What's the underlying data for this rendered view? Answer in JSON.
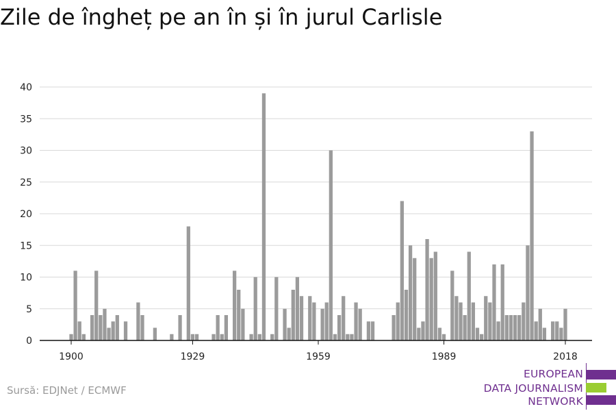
{
  "title": "Zile de îngheț pe an în și în jurul Carlisle",
  "source": "Sursă: EDJNet / ECMWF",
  "logo": {
    "lines": [
      "EUROPEAN",
      "DATA JOURNALISM",
      "NETWORK"
    ],
    "colors": {
      "purple": "#6f2f8f",
      "green": "#9acd32"
    }
  },
  "colors": {
    "bar": "#9b9b9b",
    "grid": "#d9d9d9",
    "axis": "#111111"
  },
  "chart_data": {
    "type": "bar",
    "x_start": 1900,
    "x_end": 2018,
    "ylim": [
      0,
      40
    ],
    "yticks": [
      0,
      5,
      10,
      15,
      20,
      25,
      30,
      35,
      40
    ],
    "xticks": [
      1900,
      1929,
      1959,
      1989,
      2018
    ],
    "grid": true,
    "xlabel": "",
    "ylabel": "",
    "values": [
      1,
      11,
      3,
      1,
      0,
      4,
      11,
      4,
      5,
      2,
      3,
      4,
      0,
      3,
      0,
      0,
      6,
      4,
      0,
      0,
      2,
      0,
      0,
      0,
      1,
      0,
      4,
      0,
      18,
      1,
      1,
      0,
      0,
      0,
      1,
      4,
      1,
      4,
      0,
      11,
      8,
      5,
      0,
      1,
      10,
      1,
      39,
      0,
      1,
      10,
      0,
      5,
      2,
      8,
      10,
      7,
      0,
      7,
      6,
      0,
      5,
      6,
      30,
      1,
      4,
      7,
      1,
      1,
      6,
      5,
      0,
      3,
      3,
      0,
      0,
      0,
      0,
      4,
      6,
      22,
      8,
      15,
      13,
      2,
      3,
      16,
      13,
      14,
      2,
      1,
      0,
      11,
      7,
      6,
      4,
      14,
      6,
      2,
      1,
      7,
      6,
      12,
      3,
      12,
      4,
      4,
      4,
      4,
      6,
      15,
      33,
      3,
      5,
      2,
      0,
      3,
      3,
      2,
      5
    ]
  }
}
